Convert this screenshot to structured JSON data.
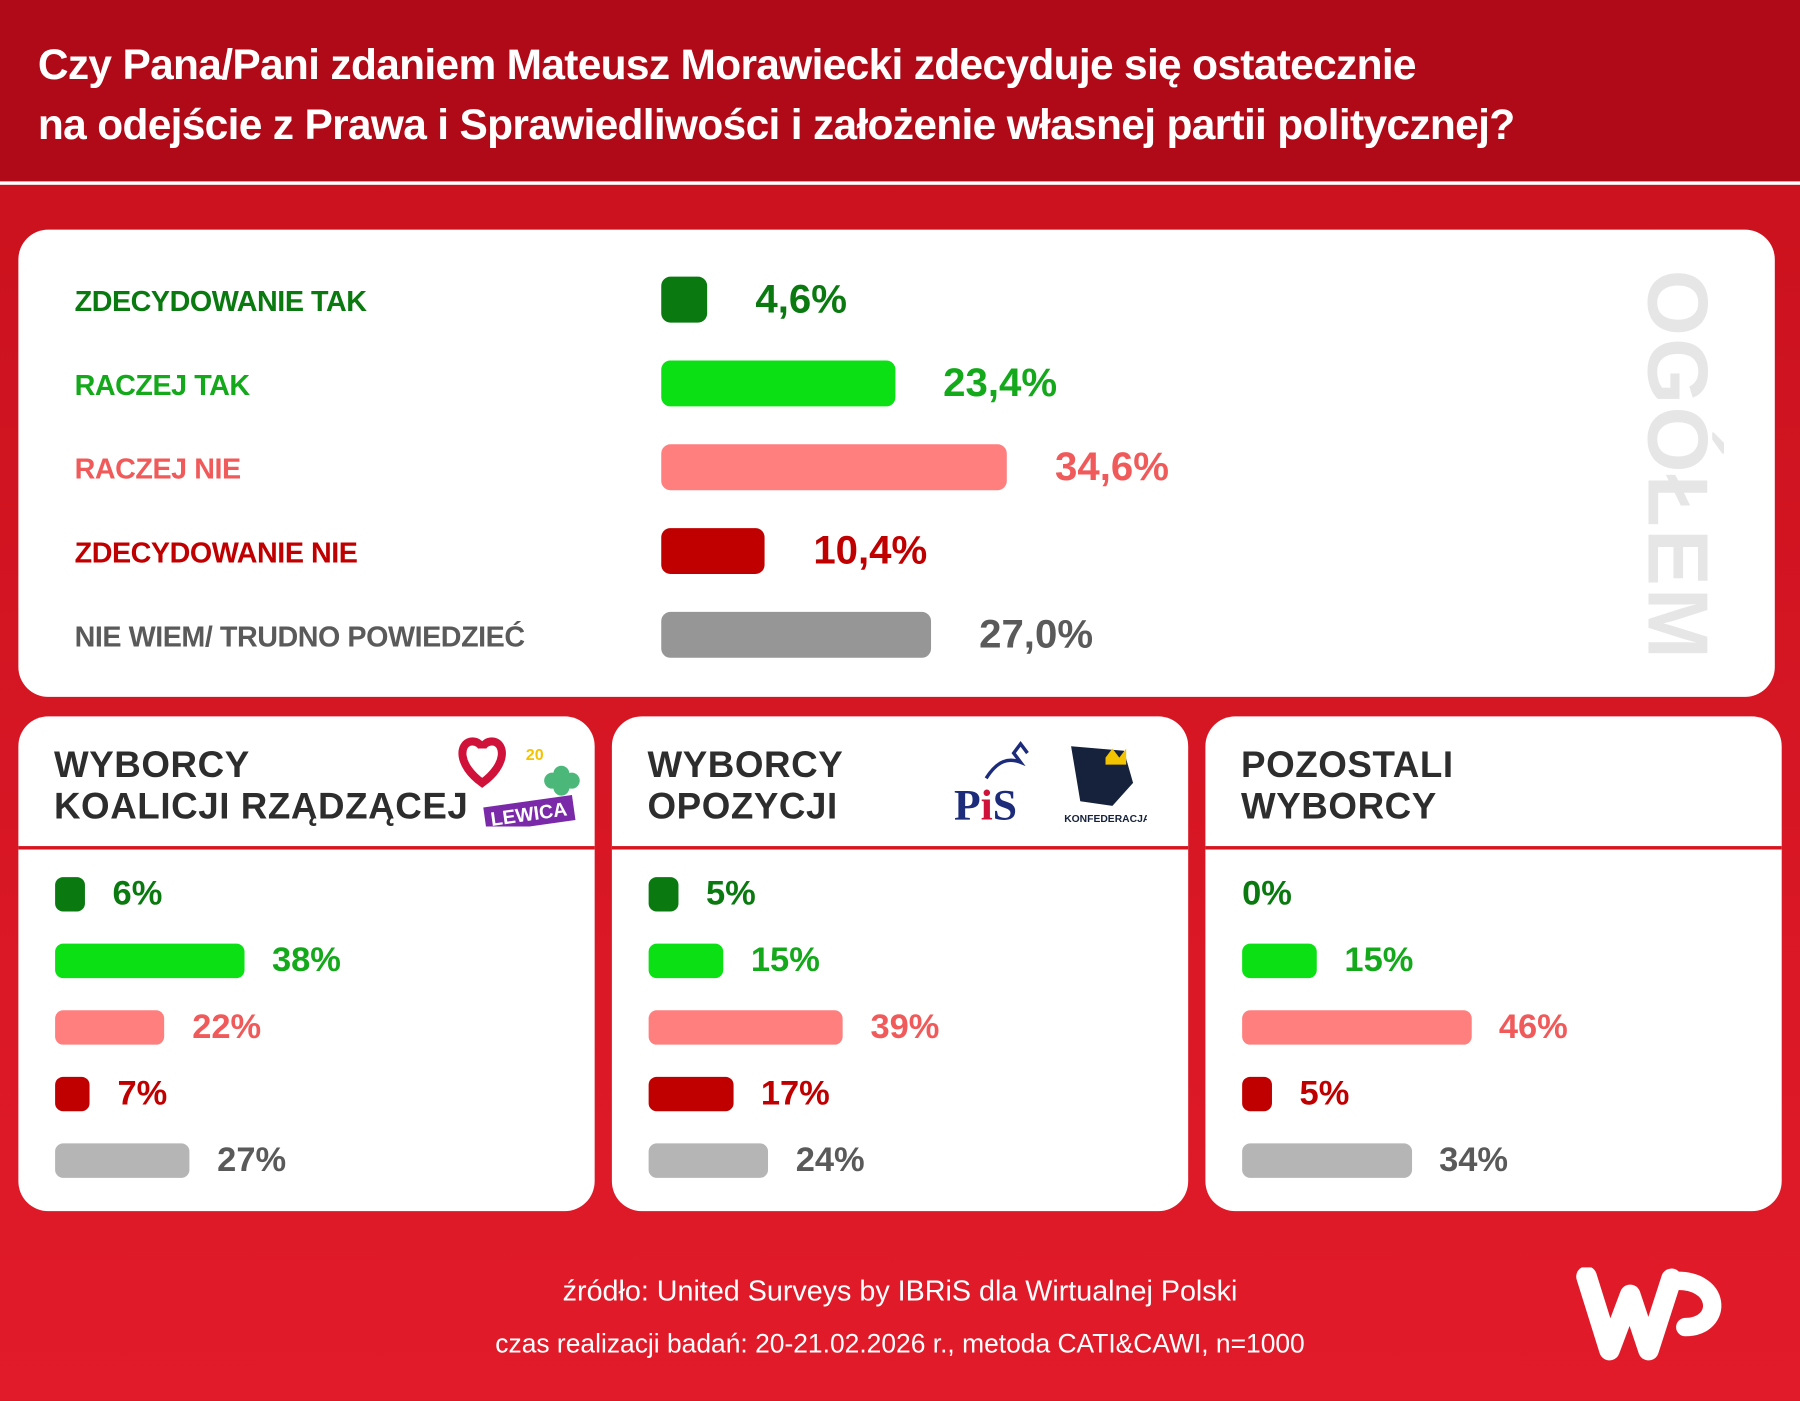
{
  "title": {
    "line1": "Czy Pana/Pani zdaniem Mateusz Morawiecki zdecyduje się ostatecznie",
    "line2": "na odejście z Prawa i Sprawiedliwości i założenie własnej partii politycznej?"
  },
  "colors": {
    "zdecydowanie_tak": "#0a7a10",
    "raczej_tak": "#0be014",
    "raczej_nie": "#ff7f7f",
    "zdecydowanie_nie": "#c00000",
    "nie_wiem": "#969696",
    "nie_wiem_sub": "#b5b5b5",
    "bg": "#d8141f"
  },
  "chart_data": [
    {
      "type": "bar",
      "title": "OGÓŁEM",
      "categories": [
        "ZDECYDOWANIE TAK",
        "RACZEJ TAK",
        "RACZEJ NIE",
        "ZDECYDOWANIE NIE",
        "NIE WIEM/ TRUDNO POWIEDZIEĆ"
      ],
      "values": [
        4.6,
        23.4,
        34.6,
        10.4,
        27.0
      ],
      "labels": [
        "4,6%",
        "23,4%",
        "34,6%",
        "10,4%",
        "27,0%"
      ],
      "unit": "%"
    },
    {
      "type": "bar",
      "title": "WYBORCY\nKOALICJI RZĄDZĄCEJ",
      "values": [
        6,
        38,
        22,
        7,
        27
      ],
      "labels": [
        "6%",
        "38%",
        "22%",
        "7%",
        "27%"
      ],
      "unit": "%"
    },
    {
      "type": "bar",
      "title": "WYBORCY\nOPOZYCJI",
      "values": [
        5,
        15,
        39,
        17,
        24
      ],
      "labels": [
        "5%",
        "15%",
        "39%",
        "17%",
        "24%"
      ],
      "unit": "%"
    },
    {
      "type": "bar",
      "title": "POZOSTALI\nWYBORCY",
      "values": [
        0,
        15,
        46,
        5,
        34
      ],
      "labels": [
        "0%",
        "15%",
        "46%",
        "5%",
        "34%"
      ],
      "unit": "%"
    }
  ],
  "logos": {
    "lewica": "LEWICA",
    "pis": "PiS",
    "konfederacja": "KONFEDERACJA",
    "wp": "WP"
  },
  "footer": {
    "source": "źródło: United Surveys by IBRiS dla Wirtualnej Polski",
    "method": "czas realizacji badań: 20-21.02.2026 r., metoda CATI&CAWI, n=1000"
  }
}
